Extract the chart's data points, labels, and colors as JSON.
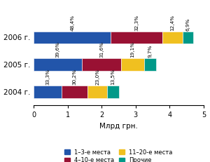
{
  "years": [
    "2006 г.",
    "2005 г.",
    "2004 г."
  ],
  "colors": [
    "#2255aa",
    "#991133",
    "#f0c020",
    "#009988"
  ],
  "values": [
    [
      2.273,
      1.517,
      0.583,
      0.324
    ],
    [
      1.426,
      1.138,
      0.688,
      0.349
    ],
    [
      0.833,
      0.755,
      0.575,
      0.338
    ]
  ],
  "percentages": [
    [
      "48,4%",
      "32,3%",
      "12,4%",
      "6,9%"
    ],
    [
      "39,6%",
      "31,6%",
      "19,1%",
      "9,7%"
    ],
    [
      "33,3%",
      "30,2%",
      "23,0%",
      "13,5%"
    ]
  ],
  "xlabel": "Млрд грн.",
  "xlim": [
    0,
    5
  ],
  "xticks": [
    0,
    1,
    2,
    3,
    4,
    5
  ],
  "legend_labels": [
    "1–3-е места",
    "4–10-е места",
    "11–20-е места",
    "Прочие"
  ]
}
